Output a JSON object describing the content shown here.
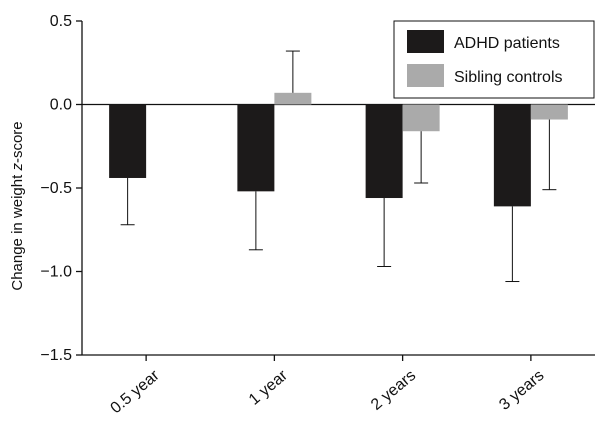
{
  "chart_data": {
    "type": "bar",
    "categories": [
      "0.5 year",
      "1 year",
      "2 years",
      "3 years"
    ],
    "ylabel_prefix": "Change in weight ",
    "ylabel_italic": "z",
    "ylabel_suffix": "-score",
    "ylim": [
      -1.5,
      0.5
    ],
    "yticks": [
      "0.5",
      "0.0",
      "-0.5",
      "-1.0",
      "-1.5"
    ],
    "grid": false,
    "legend_position": "top-right",
    "series": [
      {
        "name": "ADHD patients",
        "color": "#1c1a1a",
        "values": [
          -0.44,
          -0.52,
          -0.56,
          -0.61
        ],
        "errors": [
          0.28,
          0.35,
          0.41,
          0.45
        ]
      },
      {
        "name": "Sibling controls",
        "color": "#aaaaaa",
        "values": [
          null,
          0.07,
          -0.16,
          -0.09
        ],
        "errors": [
          null,
          0.25,
          0.31,
          0.42
        ]
      }
    ]
  }
}
